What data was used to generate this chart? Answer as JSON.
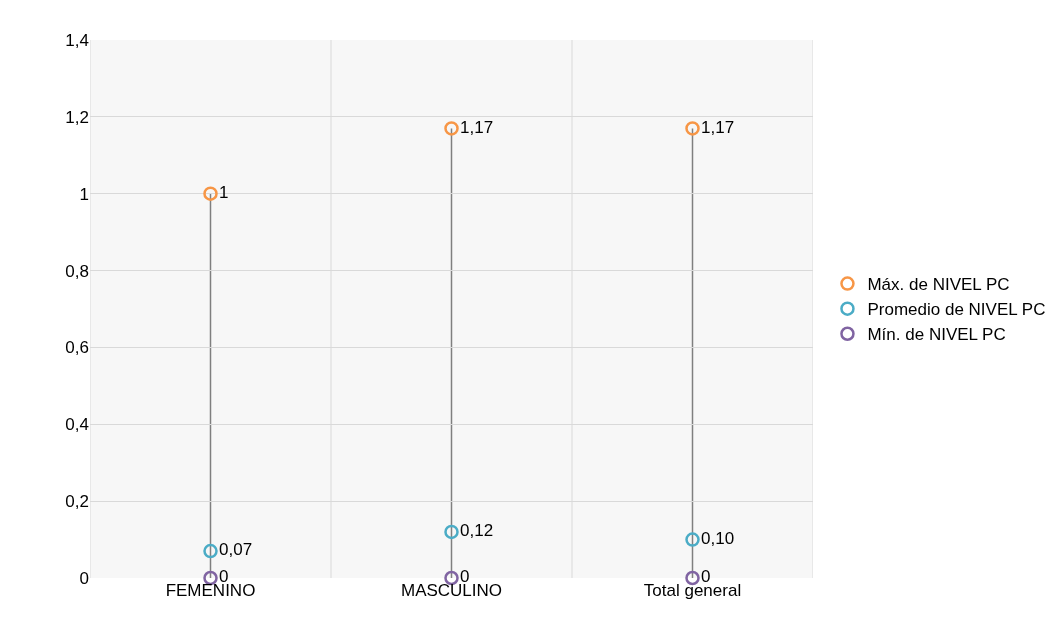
{
  "chart_data": {
    "type": "scatter",
    "categories": [
      "FEMENINO",
      "MASCULINO",
      "Total general"
    ],
    "series": [
      {
        "name": "Máx. de NIVEL PC",
        "color": "#f79646",
        "values": [
          1,
          1.17,
          1.17
        ],
        "value_labels": [
          "1",
          "1,17",
          "1,17"
        ]
      },
      {
        "name": "Promedio de NIVEL PC",
        "color": "#4bacc6",
        "values": [
          0.07,
          0.12,
          0.1
        ],
        "value_labels": [
          "0,07",
          "0,12",
          "0,10"
        ]
      },
      {
        "name": "Mín. de NIVEL PC",
        "color": "#8064a2",
        "values": [
          0,
          0,
          0
        ],
        "value_labels": [
          "0",
          "0",
          "0"
        ]
      }
    ],
    "ylim": [
      0,
      1.4
    ],
    "yticks": [
      0,
      {
        "value": 0.2,
        "label": "0,2"
      },
      {
        "value": 0.4,
        "label": "0,4"
      },
      {
        "value": 0.6,
        "label": "0,6"
      },
      {
        "value": 0.8,
        "label": "0,8"
      },
      1,
      {
        "value": 1.2,
        "label": "1,2"
      },
      {
        "value": 1.4,
        "label": "1,4"
      }
    ],
    "grid": true,
    "legend": "right",
    "marker": "circle"
  }
}
